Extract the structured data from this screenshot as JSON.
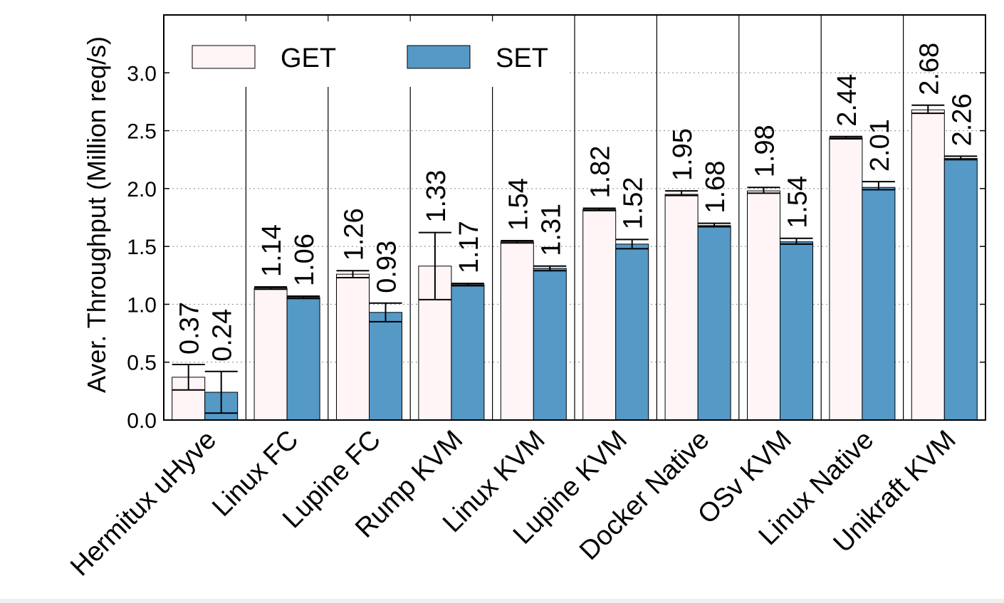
{
  "chart_data": {
    "type": "bar",
    "title": "",
    "xlabel": "",
    "ylabel": "Aver. Throughput (Million req/s)",
    "ylim": [
      0,
      3.5
    ],
    "yticks": [
      0.0,
      0.5,
      1.0,
      1.5,
      2.0,
      2.5,
      3.0
    ],
    "ytick_labels": [
      "0.0",
      "0.5",
      "1.0",
      "1.5",
      "2.0",
      "2.5",
      "3.0"
    ],
    "grid": "horizontal dotted",
    "legend_position": "top-left",
    "categories": [
      "Hermitux uHyve",
      "Linux FC",
      "Lupine FC",
      "Rump KVM",
      "Linux KVM",
      "Lupine KVM",
      "Docker Native",
      "OSv KVM",
      "Linux Native",
      "Unikraft KVM"
    ],
    "series": [
      {
        "name": "GET",
        "color": "#fff5f7",
        "values": [
          0.37,
          1.14,
          1.26,
          1.33,
          1.54,
          1.82,
          1.95,
          1.98,
          2.44,
          2.68
        ],
        "labels": [
          "0.37",
          "1.14",
          "1.26",
          "1.33",
          "1.54",
          "1.82",
          "1.95",
          "1.98",
          "2.44",
          "2.68"
        ],
        "error_low": [
          0.26,
          1.13,
          1.23,
          1.04,
          1.53,
          1.81,
          1.94,
          1.96,
          2.43,
          2.65
        ],
        "error_high": [
          0.48,
          1.15,
          1.29,
          1.62,
          1.55,
          1.83,
          1.98,
          2.01,
          2.45,
          2.72
        ]
      },
      {
        "name": "SET",
        "color": "#5599c7",
        "values": [
          0.24,
          1.06,
          0.93,
          1.17,
          1.31,
          1.52,
          1.68,
          1.54,
          2.01,
          2.26
        ],
        "labels": [
          "0.24",
          "1.06",
          "0.93",
          "1.17",
          "1.31",
          "1.52",
          "1.68",
          "1.54",
          "2.01",
          "2.26"
        ],
        "error_low": [
          0.06,
          1.05,
          0.85,
          1.16,
          1.29,
          1.48,
          1.67,
          1.52,
          1.99,
          2.25
        ],
        "error_high": [
          0.42,
          1.07,
          1.01,
          1.18,
          1.33,
          1.56,
          1.7,
          1.57,
          2.06,
          2.28
        ]
      }
    ]
  }
}
